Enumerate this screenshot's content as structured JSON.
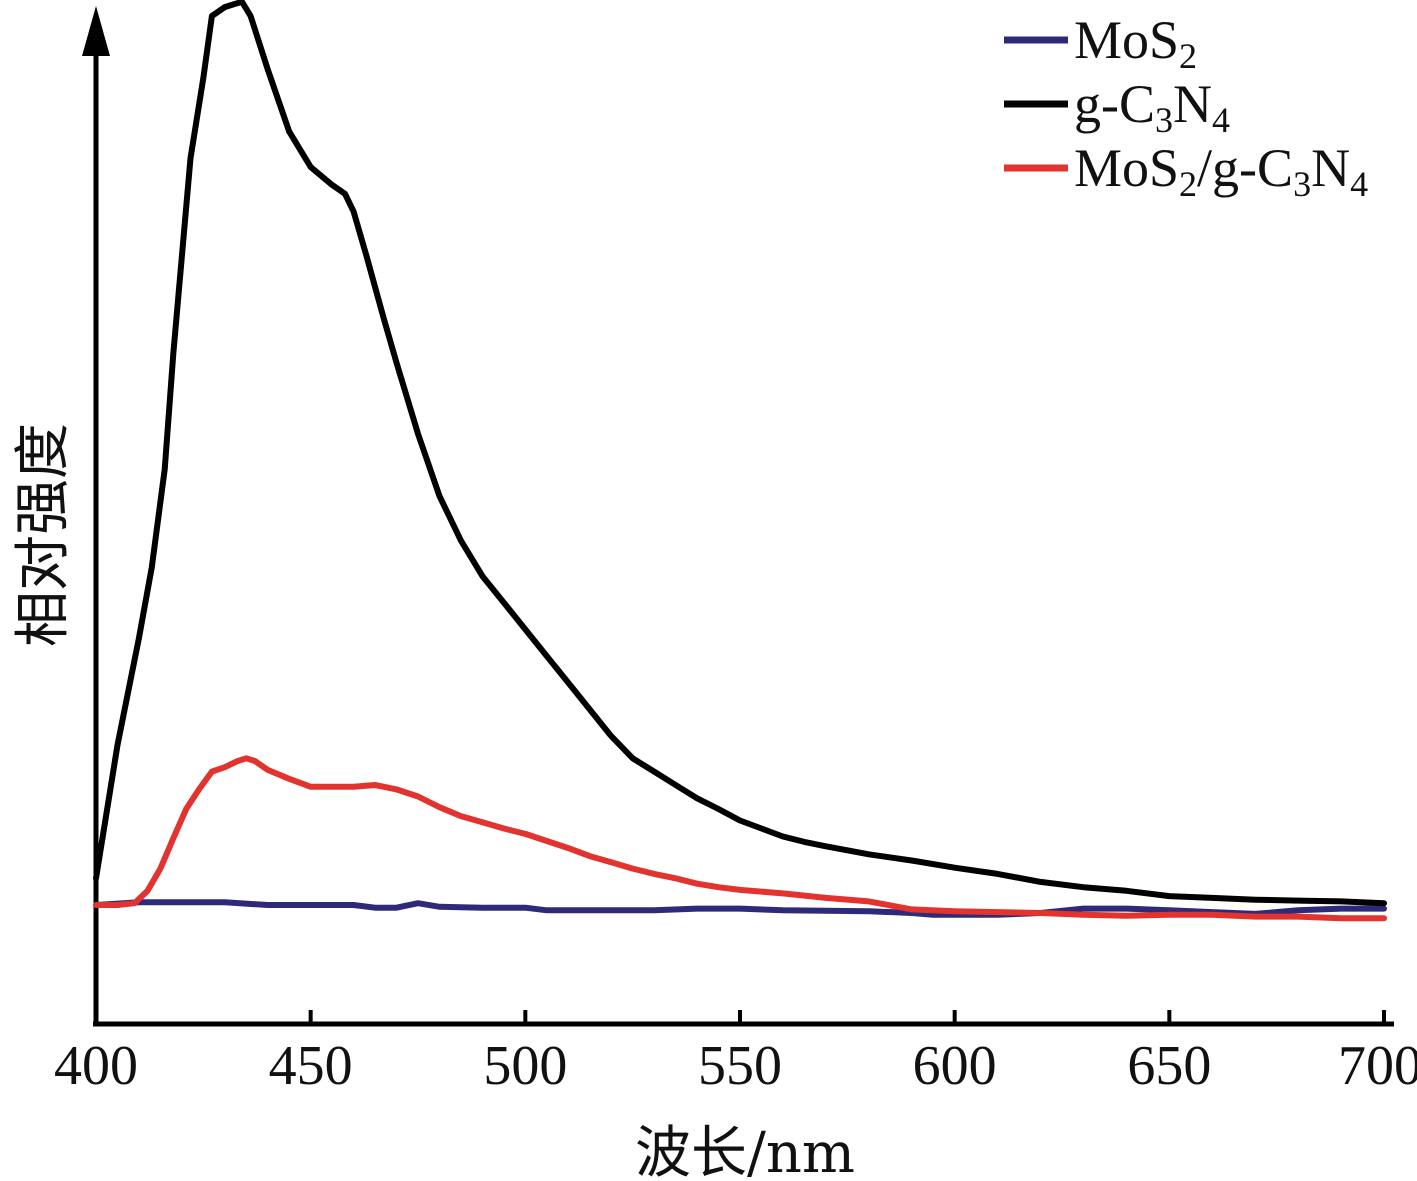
{
  "chart_data": {
    "type": "line",
    "xlabel": "波长/nm",
    "ylabel": "相对强度",
    "xlim": [
      400,
      700
    ],
    "ylim": [
      -0.14,
      1.0
    ],
    "x_ticks": [
      400,
      450,
      500,
      550,
      600,
      650,
      700
    ],
    "x_tick_labels": [
      "400",
      "450",
      "500",
      "550",
      "600",
      "650",
      "700"
    ],
    "y_ticks": [],
    "grid": false,
    "legend_position": "top-right",
    "legend_entries": [
      {
        "name": "MoS2",
        "base": "MoS",
        "sub": "2",
        "rest": ""
      },
      {
        "name": "g-C3N4",
        "base": "g-C",
        "sub": "3",
        "rest": "N",
        "sub2": "4"
      },
      {
        "name": "MoS2/g-C3N4",
        "base": "MoS",
        "sub": "2",
        "rest": "/g-C",
        "sub2": "3",
        "rest2": "N",
        "sub3": "4"
      }
    ],
    "series": [
      {
        "name": "MoS2",
        "color": "#2e2a7a",
        "points": [
          [
            400,
            0.0
          ],
          [
            410,
            0.003
          ],
          [
            420,
            0.003
          ],
          [
            430,
            0.003
          ],
          [
            440,
            0.0
          ],
          [
            450,
            0.0
          ],
          [
            460,
            0.0
          ],
          [
            465,
            -0.003
          ],
          [
            470,
            -0.003
          ],
          [
            475,
            0.002
          ],
          [
            480,
            -0.002
          ],
          [
            490,
            -0.003
          ],
          [
            500,
            -0.003
          ],
          [
            505,
            -0.006
          ],
          [
            520,
            -0.006
          ],
          [
            530,
            -0.006
          ],
          [
            540,
            -0.004
          ],
          [
            550,
            -0.004
          ],
          [
            560,
            -0.006
          ],
          [
            580,
            -0.007
          ],
          [
            590,
            -0.009
          ],
          [
            595,
            -0.011
          ],
          [
            610,
            -0.011
          ],
          [
            620,
            -0.009
          ],
          [
            630,
            -0.004
          ],
          [
            640,
            -0.004
          ],
          [
            650,
            -0.006
          ],
          [
            660,
            -0.008
          ],
          [
            670,
            -0.01
          ],
          [
            680,
            -0.006
          ],
          [
            690,
            -0.004
          ],
          [
            700,
            -0.004
          ]
        ]
      },
      {
        "name": "g-C3N4",
        "color": "#000000",
        "points": [
          [
            400,
            0.03
          ],
          [
            405,
            0.18
          ],
          [
            410,
            0.3
          ],
          [
            413,
            0.38
          ],
          [
            416,
            0.49
          ],
          [
            418,
            0.62
          ],
          [
            420,
            0.73
          ],
          [
            422,
            0.84
          ],
          [
            425,
            0.93
          ],
          [
            427,
            1.0
          ],
          [
            430,
            1.01
          ],
          [
            432,
            1.013
          ],
          [
            434,
            1.016
          ],
          [
            436,
            1.0
          ],
          [
            440,
            0.94
          ],
          [
            445,
            0.87
          ],
          [
            450,
            0.83
          ],
          [
            455,
            0.81
          ],
          [
            458,
            0.8
          ],
          [
            460,
            0.78
          ],
          [
            463,
            0.73
          ],
          [
            467,
            0.66
          ],
          [
            470,
            0.61
          ],
          [
            475,
            0.53
          ],
          [
            480,
            0.46
          ],
          [
            485,
            0.41
          ],
          [
            490,
            0.37
          ],
          [
            495,
            0.34
          ],
          [
            500,
            0.31
          ],
          [
            505,
            0.28
          ],
          [
            510,
            0.25
          ],
          [
            515,
            0.22
          ],
          [
            520,
            0.19
          ],
          [
            525,
            0.165
          ],
          [
            530,
            0.15
          ],
          [
            535,
            0.135
          ],
          [
            540,
            0.12
          ],
          [
            545,
            0.108
          ],
          [
            550,
            0.095
          ],
          [
            555,
            0.086
          ],
          [
            560,
            0.077
          ],
          [
            565,
            0.071
          ],
          [
            570,
            0.066
          ],
          [
            580,
            0.057
          ],
          [
            590,
            0.05
          ],
          [
            600,
            0.042
          ],
          [
            610,
            0.035
          ],
          [
            620,
            0.026
          ],
          [
            630,
            0.02
          ],
          [
            640,
            0.016
          ],
          [
            650,
            0.01
          ],
          [
            660,
            0.008
          ],
          [
            670,
            0.006
          ],
          [
            680,
            0.005
          ],
          [
            690,
            0.004
          ],
          [
            700,
            0.002
          ]
        ]
      },
      {
        "name": "MoS2/g-C3N4",
        "color": "#e2332e",
        "points": [
          [
            400,
            0.0
          ],
          [
            405,
            0.0
          ],
          [
            409,
            0.002
          ],
          [
            412,
            0.016
          ],
          [
            415,
            0.041
          ],
          [
            418,
            0.075
          ],
          [
            421,
            0.108
          ],
          [
            424,
            0.13
          ],
          [
            427,
            0.15
          ],
          [
            430,
            0.155
          ],
          [
            433,
            0.162
          ],
          [
            435,
            0.165
          ],
          [
            437,
            0.162
          ],
          [
            440,
            0.152
          ],
          [
            445,
            0.142
          ],
          [
            450,
            0.133
          ],
          [
            455,
            0.133
          ],
          [
            460,
            0.133
          ],
          [
            465,
            0.135
          ],
          [
            470,
            0.13
          ],
          [
            475,
            0.122
          ],
          [
            480,
            0.11
          ],
          [
            485,
            0.1
          ],
          [
            490,
            0.093
          ],
          [
            495,
            0.086
          ],
          [
            500,
            0.08
          ],
          [
            505,
            0.072
          ],
          [
            510,
            0.064
          ],
          [
            515,
            0.055
          ],
          [
            520,
            0.048
          ],
          [
            525,
            0.041
          ],
          [
            530,
            0.035
          ],
          [
            535,
            0.03
          ],
          [
            540,
            0.024
          ],
          [
            545,
            0.02
          ],
          [
            550,
            0.017
          ],
          [
            560,
            0.013
          ],
          [
            570,
            0.008
          ],
          [
            580,
            0.004
          ],
          [
            590,
            -0.005
          ],
          [
            600,
            -0.007
          ],
          [
            610,
            -0.008
          ],
          [
            620,
            -0.009
          ],
          [
            630,
            -0.011
          ],
          [
            640,
            -0.012
          ],
          [
            650,
            -0.011
          ],
          [
            660,
            -0.011
          ],
          [
            670,
            -0.013
          ],
          [
            680,
            -0.013
          ],
          [
            690,
            -0.015
          ],
          [
            700,
            -0.015
          ]
        ]
      }
    ]
  }
}
